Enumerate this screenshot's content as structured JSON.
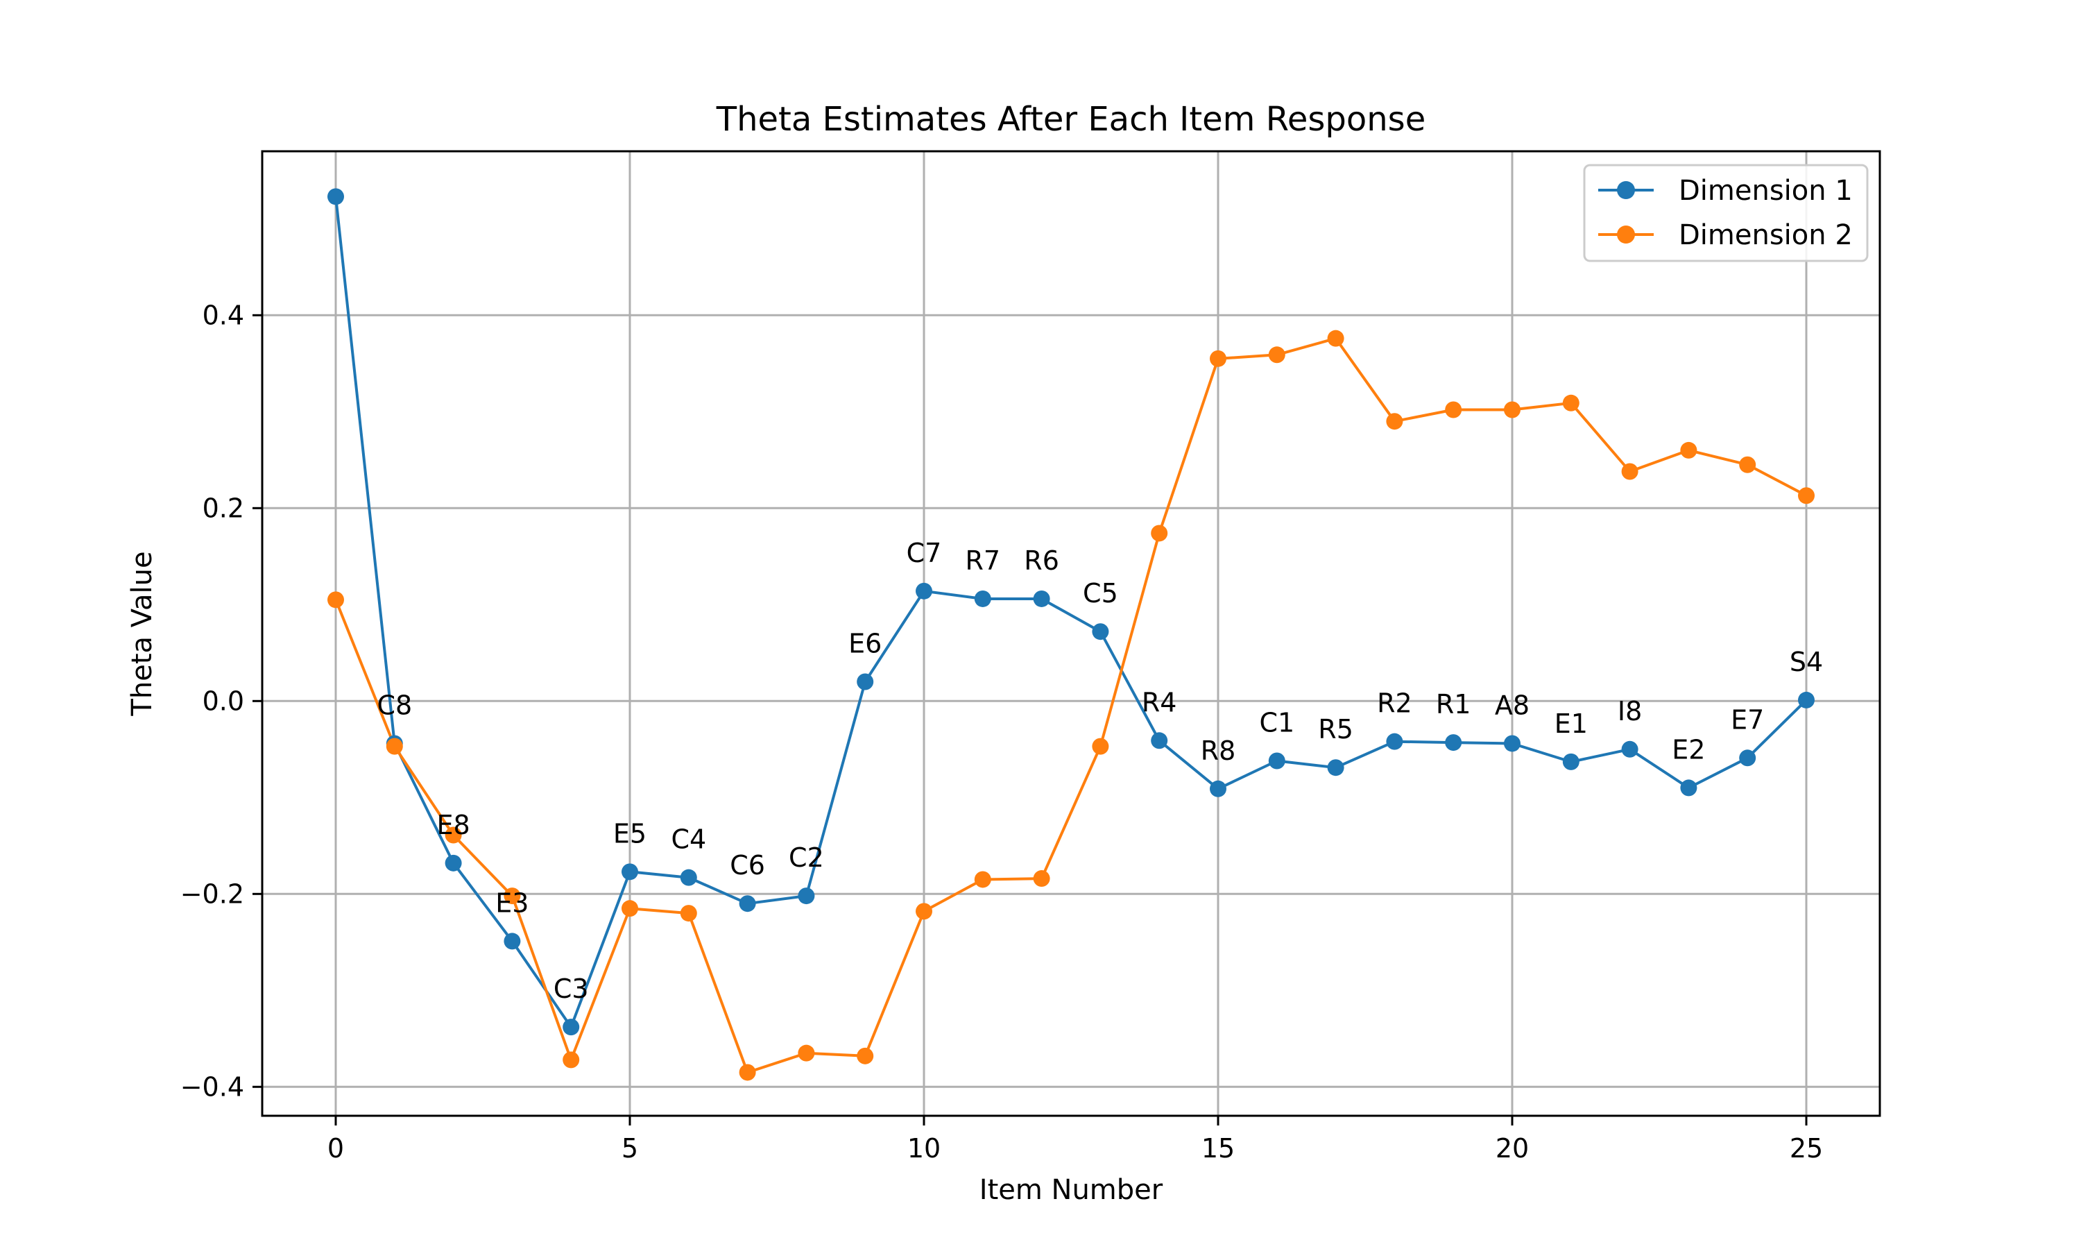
{
  "chart_data": {
    "type": "line",
    "title": "Theta Estimates After Each Item Response",
    "xlabel": "Item Number",
    "ylabel": "Theta Value",
    "xlim": [
      -1.25,
      26.25
    ],
    "ylim": [
      -0.43,
      0.57
    ],
    "xticks": [
      0,
      5,
      10,
      15,
      20,
      25
    ],
    "xtick_labels": [
      "0",
      "5",
      "10",
      "15",
      "20",
      "25"
    ],
    "yticks": [
      -0.4,
      -0.2,
      0.0,
      0.2,
      0.4
    ],
    "ytick_labels": [
      "−0.4",
      "−0.2",
      "0.0",
      "0.2",
      "0.4"
    ],
    "grid": true,
    "legend_position": "top-right",
    "x": [
      0,
      1,
      2,
      3,
      4,
      5,
      6,
      7,
      8,
      9,
      10,
      11,
      12,
      13,
      14,
      15,
      16,
      17,
      18,
      19,
      20,
      21,
      22,
      23,
      24,
      25
    ],
    "point_labels": [
      "",
      "C8",
      "E8",
      "E3",
      "C3",
      "E5",
      "C4",
      "C6",
      "C2",
      "E6",
      "C7",
      "R7",
      "R6",
      "C5",
      "R4",
      "R8",
      "C1",
      "R5",
      "R2",
      "R1",
      "A8",
      "E1",
      "I8",
      "E2",
      "E7",
      "S4"
    ],
    "series": [
      {
        "name": "Dimension 1",
        "color": "#1f77b4",
        "values": [
          0.523,
          -0.044,
          -0.168,
          -0.249,
          -0.338,
          -0.177,
          -0.183,
          -0.21,
          -0.202,
          0.02,
          0.114,
          0.106,
          0.106,
          0.072,
          -0.041,
          -0.091,
          -0.062,
          -0.069,
          -0.042,
          -0.043,
          -0.044,
          -0.063,
          -0.05,
          -0.09,
          -0.059,
          0.001
        ]
      },
      {
        "name": "Dimension 2",
        "color": "#ff7f0e",
        "values": [
          0.105,
          -0.047,
          -0.139,
          -0.202,
          -0.372,
          -0.215,
          -0.22,
          -0.385,
          -0.365,
          -0.368,
          -0.218,
          -0.185,
          -0.184,
          -0.047,
          0.174,
          0.355,
          0.359,
          0.376,
          0.29,
          0.302,
          0.302,
          0.309,
          0.238,
          0.26,
          0.245,
          0.213
        ]
      }
    ]
  }
}
